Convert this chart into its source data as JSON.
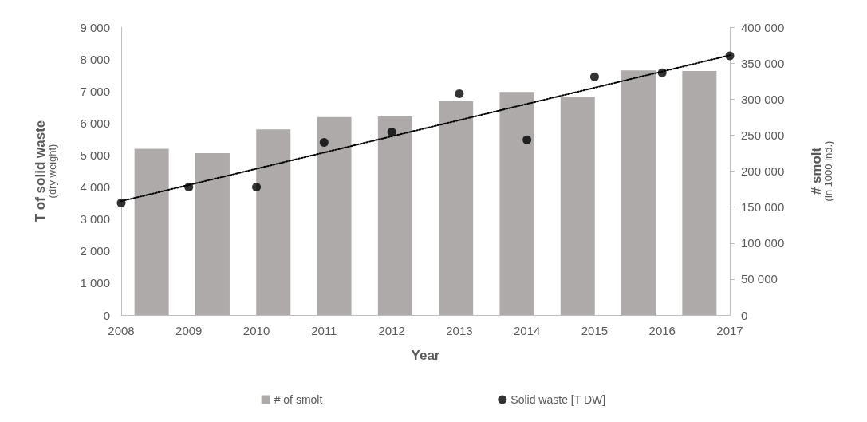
{
  "chart_data": {
    "type": "bar",
    "xlabel": "Year",
    "ylabel": "T of solid waste\n(dry weight)",
    "y2label": "# smolt\n(in 1000 ind.)",
    "xlim": [
      2008,
      2017
    ],
    "xticks": [
      2008,
      2009,
      2010,
      2011,
      2012,
      2013,
      2014,
      2015,
      2016,
      2017
    ],
    "ylim": [
      0,
      9000
    ],
    "yticks": [
      0,
      {
        "value": 1000,
        "label": "1 000"
      },
      {
        "value": 2000,
        "label": "2 000"
      },
      {
        "value": 3000,
        "label": "3 000"
      },
      {
        "value": 4000,
        "label": "4 000"
      },
      {
        "value": 5000,
        "label": "5 000"
      },
      {
        "value": 6000,
        "label": "6 000"
      },
      {
        "value": 7000,
        "label": "7 000"
      },
      {
        "value": 8000,
        "label": "8 000"
      },
      {
        "value": 9000,
        "label": "9 000"
      }
    ],
    "y2lim": [
      0,
      400000
    ],
    "y2ticks": [
      0,
      {
        "value": 50000,
        "label": "50 000"
      },
      {
        "value": 100000,
        "label": "100 000"
      },
      {
        "value": 150000,
        "label": "150 000"
      },
      {
        "value": 200000,
        "label": "200 000"
      },
      {
        "value": 250000,
        "label": "250 000"
      },
      {
        "value": 300000,
        "label": "300 000"
      },
      {
        "value": 350000,
        "label": "350 000"
      },
      {
        "value": 400000,
        "label": "400 000"
      }
    ],
    "grid": false,
    "legend": "bottom",
    "series": [
      {
        "name": "# of smolt",
        "axis": "y2",
        "color": "#aeaaaa",
        "x": [
          2008.45,
          2009.35,
          2010.25,
          2011.15,
          2012.05,
          2012.95,
          2013.85,
          2014.75,
          2015.65,
          2016.55
        ],
        "values": [
          231000,
          225000,
          258000,
          275000,
          276000,
          297000,
          310000,
          303000,
          340000,
          339000
        ]
      },
      {
        "name": "Solid waste [T DW]",
        "type": "scatter",
        "marker": "circle",
        "color": "#000000",
        "x": [
          2008,
          2009,
          2010,
          2011,
          2012,
          2013,
          2014,
          2015,
          2016,
          2017
        ],
        "values": [
          3500,
          4000,
          4000,
          5400,
          5720,
          6920,
          5480,
          7450,
          7570,
          8100
        ]
      },
      {
        "type": "line",
        "line_style": "dotted",
        "marker": "none",
        "color": "#000000",
        "x": [
          2008,
          2017
        ],
        "values": [
          3560,
          8120
        ]
      }
    ]
  }
}
